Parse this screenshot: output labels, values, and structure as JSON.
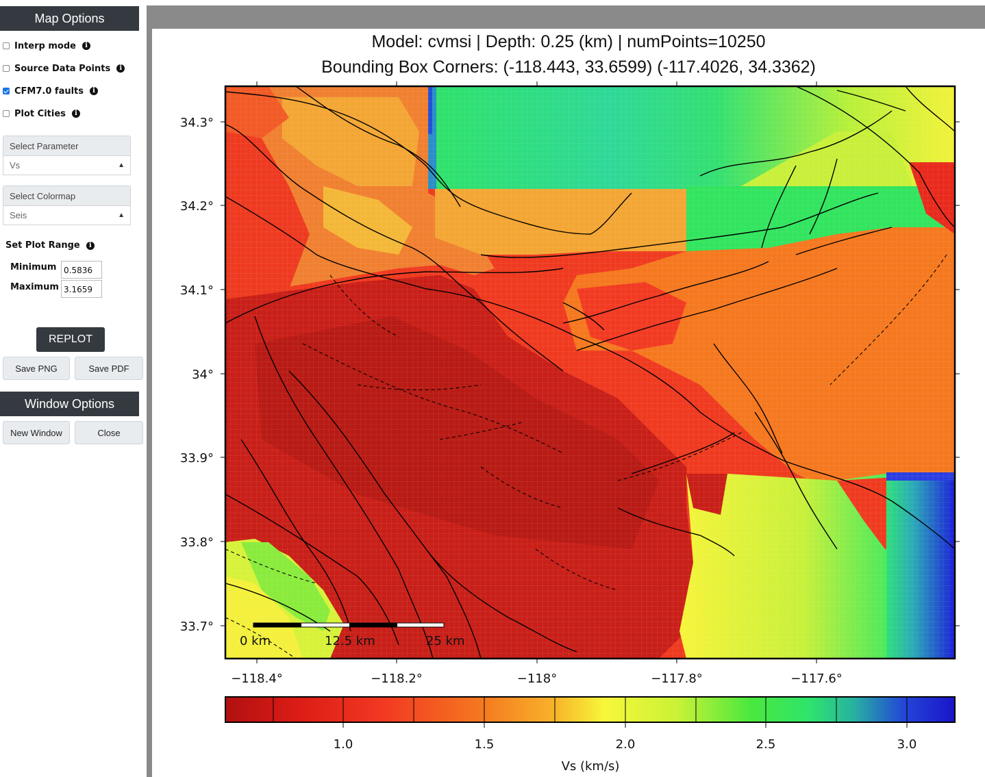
{
  "sidebar": {
    "map_options_title": "Map Options",
    "checkboxes": [
      {
        "label": "Interp mode",
        "checked": false
      },
      {
        "label": "Source Data Points",
        "checked": false
      },
      {
        "label": "CFM7.0 faults",
        "checked": true
      },
      {
        "label": "Plot Cities",
        "checked": false
      }
    ],
    "info_icon": "i",
    "parameter": {
      "header": "Select Parameter",
      "value": "Vs"
    },
    "colormap": {
      "header": "Select Colormap",
      "value": "Seis"
    },
    "plot_range": {
      "title": "Set Plot Range",
      "min_label": "Minimum",
      "min_value": "0.5836",
      "max_label": "Maximum",
      "max_value": "3.1659"
    },
    "replot_label": "REPLOT",
    "save_png_label": "Save PNG",
    "save_pdf_label": "Save PDF",
    "window_options_title": "Window Options",
    "new_window_label": "New Window",
    "close_label": "Close"
  },
  "plot": {
    "title_line1": "Model: cvmsi | Depth: 0.25 (km) | numPoints=10250",
    "title_line2": "Bounding Box Corners: (-118.443, 33.6599) (-117.4026, 34.3362)",
    "x_ticks": [
      "−118.4°",
      "−118.2°",
      "−118°",
      "−117.8°",
      "−117.6°"
    ],
    "y_ticks": [
      "34.3°",
      "34.2°",
      "34.1°",
      "34°",
      "33.9°",
      "33.8°",
      "33.7°"
    ],
    "scalebar_labels": [
      "0 km",
      "12.5 km",
      "25 km"
    ],
    "colorbar_ticks": [
      "1.0",
      "1.5",
      "2.0",
      "2.5",
      "3.0"
    ],
    "colorbar_label": "Vs (km/s)"
  },
  "colors": {
    "header_bg": "#343a40",
    "panel_bg": "#8a8a8a",
    "dark_red": "#c41a16",
    "red": "#f0301e",
    "orange": "#f57c22",
    "yellow": "#f2f23a",
    "green": "#33e650",
    "blue": "#1a28d8"
  }
}
